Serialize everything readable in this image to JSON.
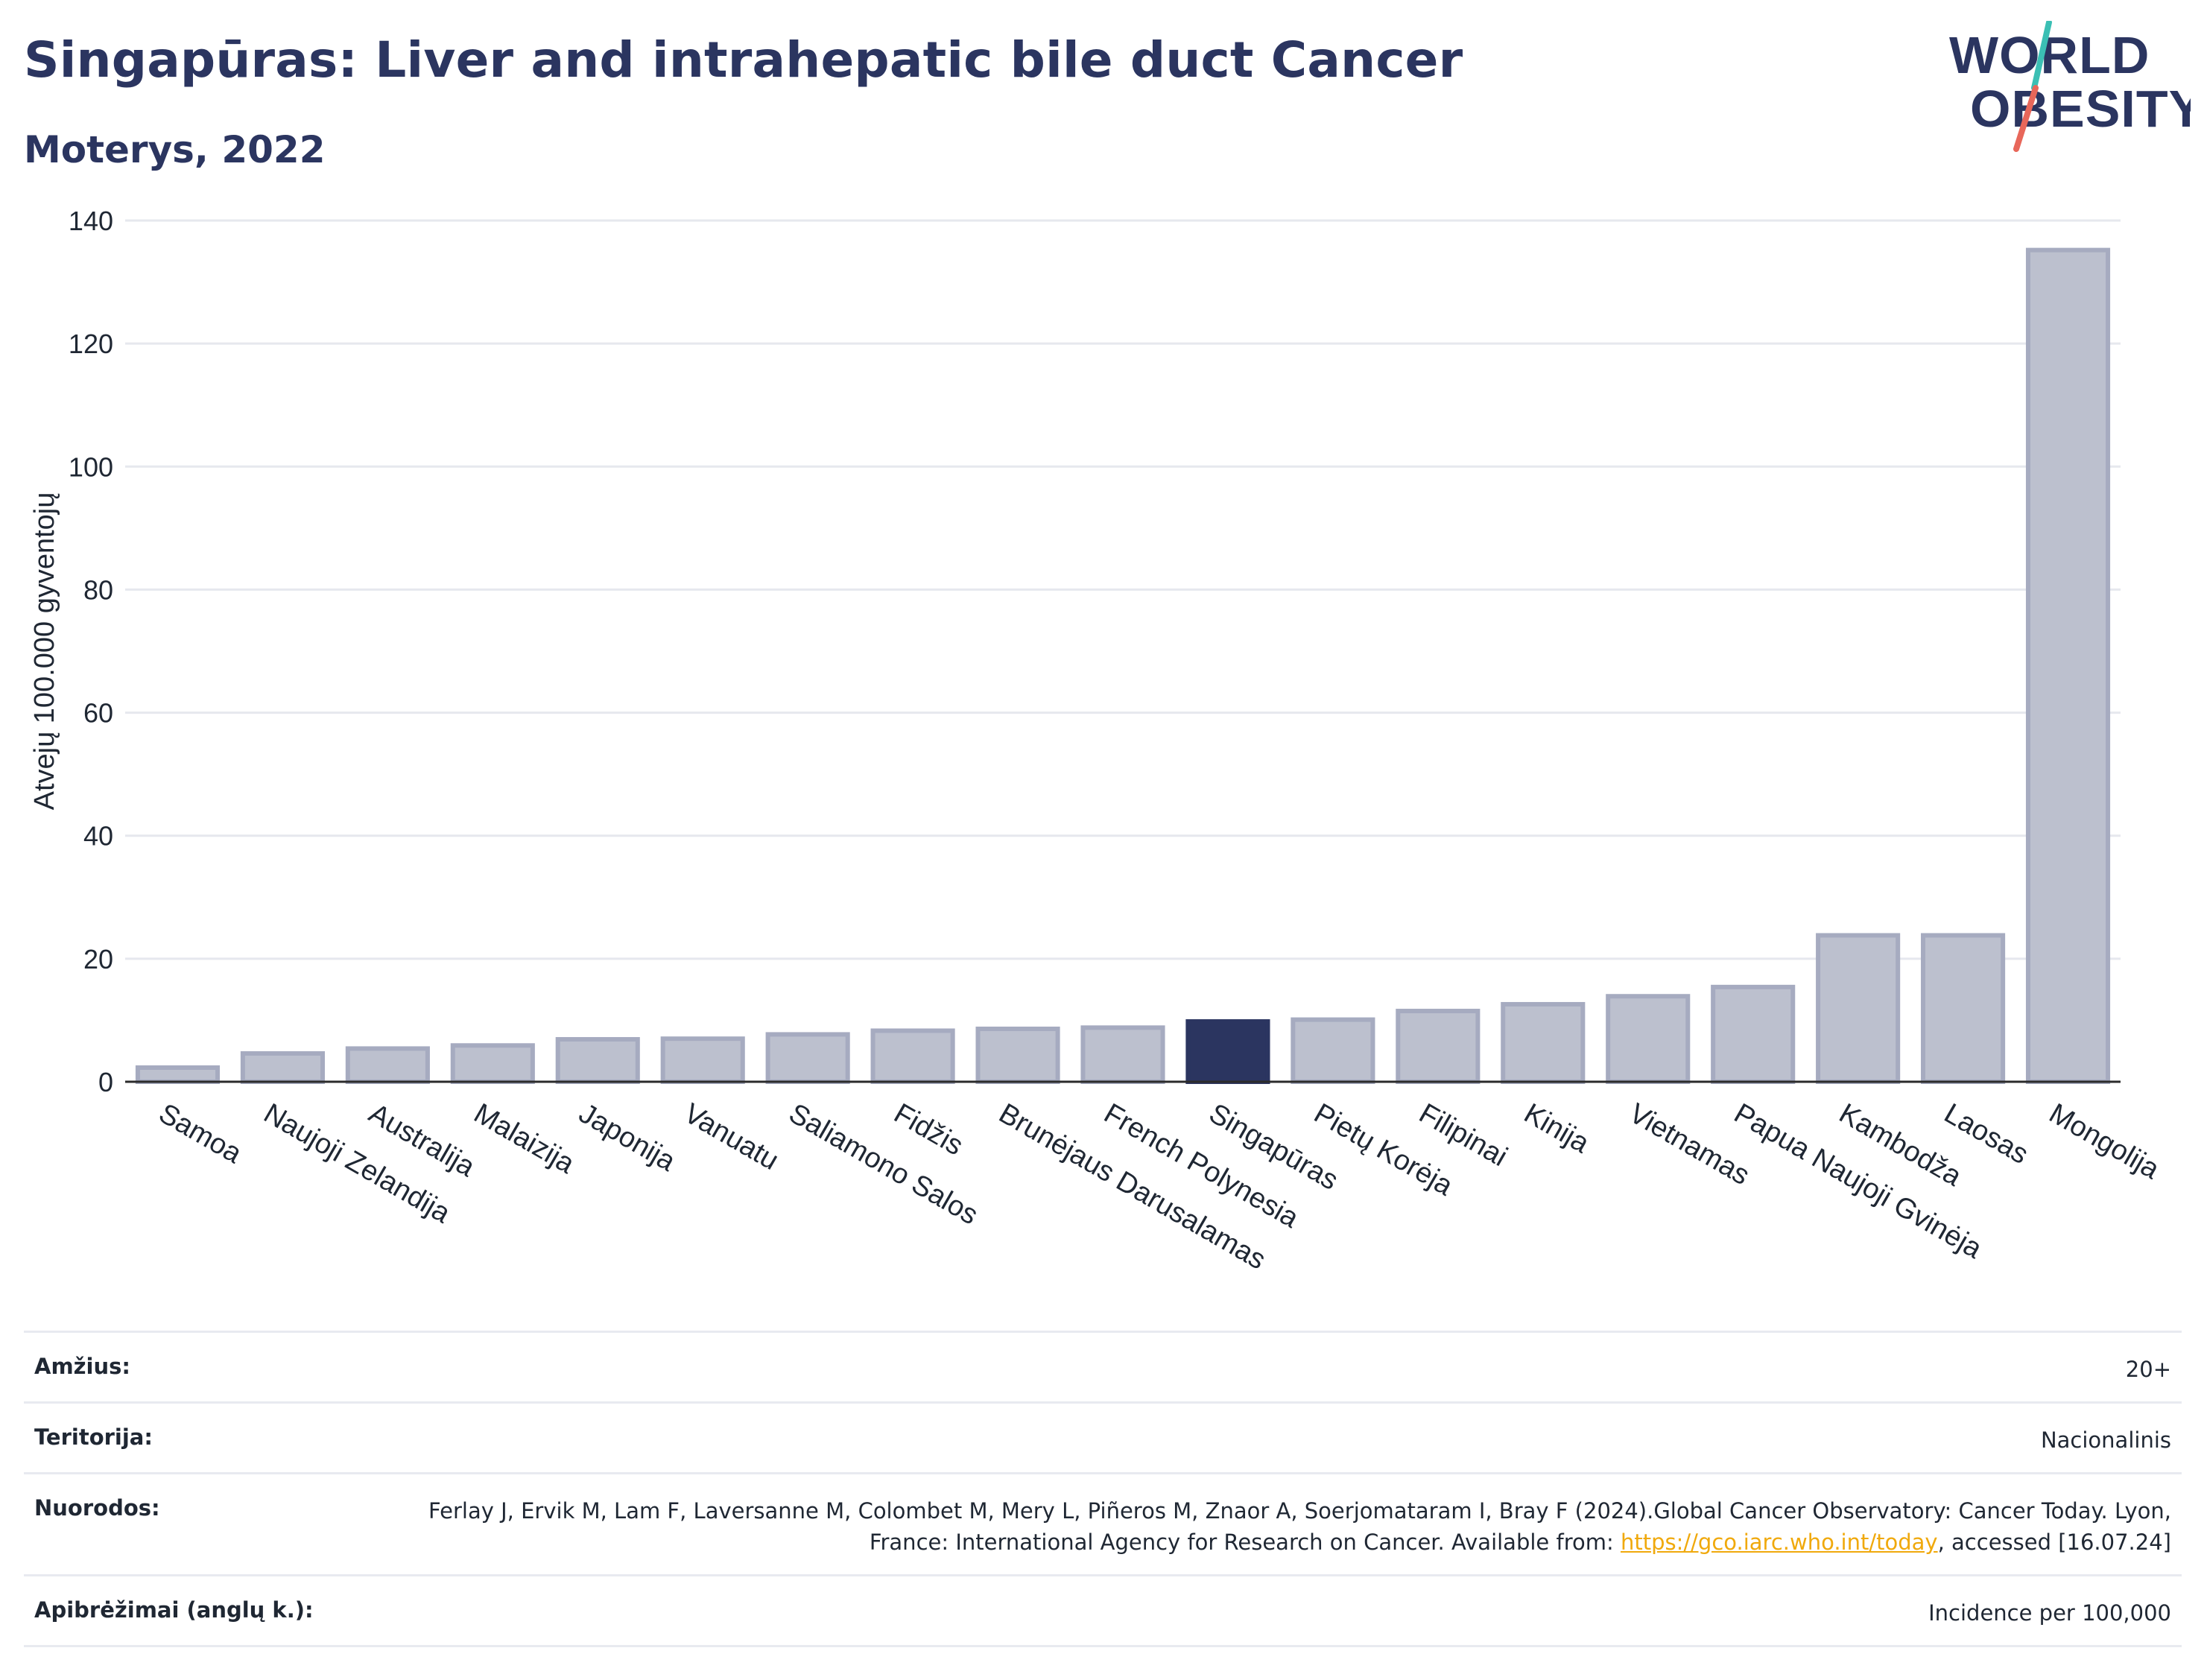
{
  "title": "Singapūras: Liver and intrahepatic bile duct Cancer",
  "subtitle": "Moterys, 2022",
  "logo": {
    "line1": "WORLD",
    "line2": "OBESITY",
    "slash_colors": [
      "#e8675a",
      "#3bbfb4"
    ]
  },
  "colors": {
    "highlight": "#2b3560",
    "bar": "#bcc0ce",
    "bar_border": "#a6abc0",
    "grid": "#e6e8ee",
    "axis": "#2b2b2b",
    "link": "#f0a90c"
  },
  "chart_data": {
    "type": "bar",
    "title": "Singapūras: Liver and intrahepatic bile duct Cancer",
    "subtitle": "Moterys, 2022",
    "ylabel": "Atvejų 100.000 gyventojų",
    "xlabel": "",
    "ylim": [
      0,
      140
    ],
    "yticks": [
      0,
      20,
      40,
      60,
      80,
      100,
      120,
      140
    ],
    "grid": true,
    "highlight": "Singapūras",
    "categories": [
      "Samoa",
      "Naujoji Zelandija",
      "Australija",
      "Malaizija",
      "Japonija",
      "Vanuatu",
      "Saliamono Salos",
      "Fidžis",
      "Brunėjaus Darusalamas",
      "French Polynesia",
      "Singapūras",
      "Pietų Korėja",
      "Filipinai",
      "Kinija",
      "Vietnamas",
      "Papua Naujoji Gvinėja",
      "Kambodža",
      "Laosas",
      "Mongolija"
    ],
    "values": [
      2.3,
      4.6,
      5.4,
      5.9,
      6.9,
      7.0,
      7.7,
      8.3,
      8.6,
      8.8,
      9.8,
      10.1,
      11.5,
      12.6,
      13.9,
      15.4,
      23.8,
      23.8,
      135.2
    ]
  },
  "info": [
    {
      "label": "Amžius:",
      "value": "20+"
    },
    {
      "label": "Teritorija:",
      "value": "Nacionalinis"
    },
    {
      "label": "Nuorodos:",
      "value_before": "Ferlay J, Ervik M, Lam F, Laversanne M, Colombet M, Mery L, Piñeros M, Znaor A, Soerjomataram I, Bray F (2024).Global Cancer Observatory: Cancer Today. Lyon, France: International Agency for Research on Cancer. Available from: ",
      "link": "https://gco.iarc.who.int/today",
      "value_after": ", accessed [16.07.24]"
    },
    {
      "label": "Apibrėžimai (anglų k.):",
      "value": "Incidence per 100,000"
    }
  ]
}
